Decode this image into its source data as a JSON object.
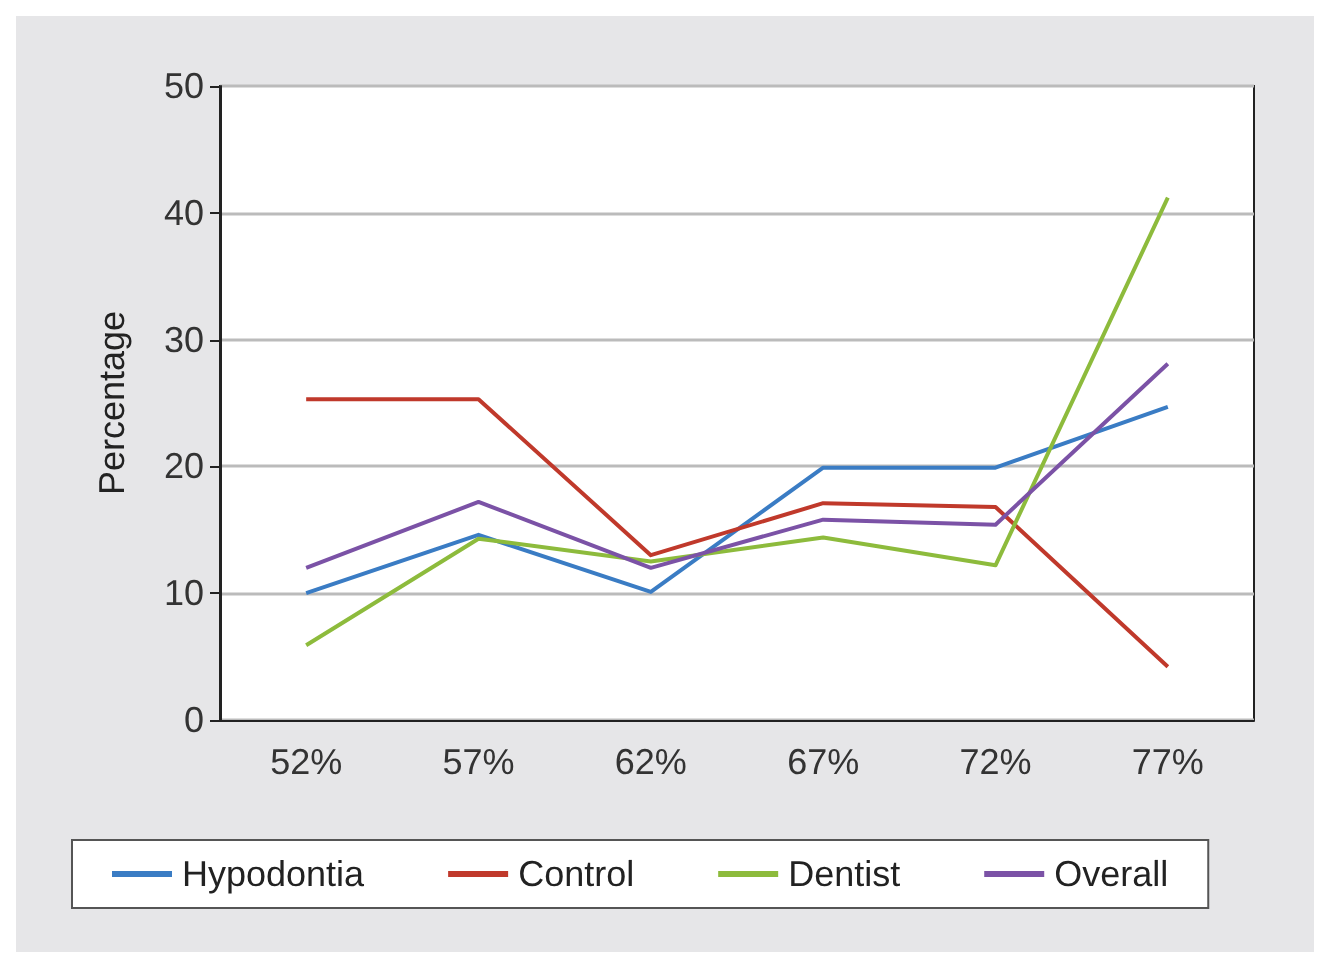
{
  "chart_data": {
    "type": "line",
    "ylabel": "Percentage",
    "categories": [
      "52%",
      "57%",
      "62%",
      "67%",
      "72%",
      "77%"
    ],
    "series": [
      {
        "name": "Hypodontia",
        "color": "#3a7cc4",
        "values": [
          10.0,
          14.6,
          10.1,
          19.9,
          19.9,
          24.7
        ]
      },
      {
        "name": "Control",
        "color": "#c0392b",
        "values": [
          25.3,
          25.3,
          13.0,
          17.1,
          16.8,
          4.2
        ]
      },
      {
        "name": "Dentist",
        "color": "#8dbb3c",
        "values": [
          5.9,
          14.3,
          12.5,
          14.4,
          12.2,
          41.2
        ]
      },
      {
        "name": "Overall",
        "color": "#7b52a6",
        "values": [
          12.0,
          17.2,
          12.0,
          15.8,
          15.4,
          28.1
        ]
      }
    ],
    "ylim": [
      0,
      50
    ],
    "yticks": [
      0,
      10,
      20,
      30,
      40,
      50
    ],
    "grid": "y",
    "legend": "bottom",
    "marker": "none",
    "line_style": "solid"
  }
}
